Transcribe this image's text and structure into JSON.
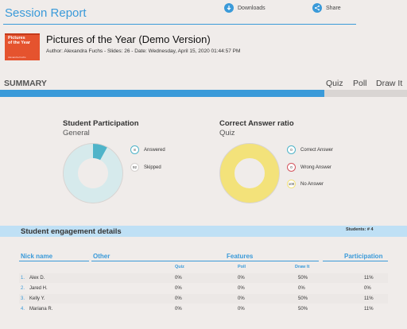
{
  "header": {
    "title": "Session Report",
    "downloads_label": "Downloads",
    "share_label": "Share"
  },
  "presentation": {
    "thumb_title_line1": "Pictures",
    "thumb_title_line2": "of the Year",
    "thumb_footer": "Alexandra Fuchs",
    "title": "Pictures of the Year (Demo Version)",
    "meta": "Author: Alexandra Fuchs - Slides: 26 - Date: Wednesday, April 15, 2020 01:44:57 PM"
  },
  "summary": {
    "label": "SUMMARY",
    "tabs": [
      "Quiz",
      "Poll",
      "Draw It"
    ]
  },
  "participation": {
    "title": "Student Participation",
    "subtitle": "General",
    "answered": 8,
    "skipped": 92,
    "answered_label": "Answered",
    "skipped_label": "Skipped",
    "answered_value": "8",
    "skipped_value": "92",
    "colors": {
      "answered": "#4fb4c9",
      "skipped": "#d6eaec",
      "rim": "#d8d4d2"
    }
  },
  "correct_ratio": {
    "title": "Correct Answer ratio",
    "subtitle": "Quiz",
    "correct": 0,
    "wrong": 0,
    "no_answer": 100,
    "correct_label": "Correct Answer",
    "wrong_label": "Wrong Answer",
    "no_answer_label": "No Answer",
    "correct_value": "0",
    "wrong_value": "0",
    "no_answer_value": "100",
    "colors": {
      "correct": "#4fb4c9",
      "wrong": "#d4555e",
      "no_answer": "#f3e27a",
      "rim": "#d8d4d2"
    }
  },
  "engagement": {
    "title": "Student engagement details",
    "students_label": "Students: # 4",
    "columns": {
      "nick": "Nick name",
      "other": "Other",
      "features": "Features",
      "participation": "Participation",
      "quiz": "Quiz",
      "poll": "Poll",
      "drawit": "Draw It"
    },
    "rows": [
      {
        "idx": "1.",
        "name": "Alex D.",
        "quiz": "0%",
        "poll": "0%",
        "drawit": "50%",
        "participation": "11%"
      },
      {
        "idx": "2.",
        "name": "Jared H.",
        "quiz": "0%",
        "poll": "0%",
        "drawit": "0%",
        "participation": "0%"
      },
      {
        "idx": "3.",
        "name": "Kelly Y.",
        "quiz": "0%",
        "poll": "0%",
        "drawit": "50%",
        "participation": "11%"
      },
      {
        "idx": "4.",
        "name": "Mariana R.",
        "quiz": "0%",
        "poll": "0%",
        "drawit": "50%",
        "participation": "11%"
      }
    ]
  },
  "colors": {
    "accent": "#3a9ad9",
    "background": "#f0ecea"
  }
}
